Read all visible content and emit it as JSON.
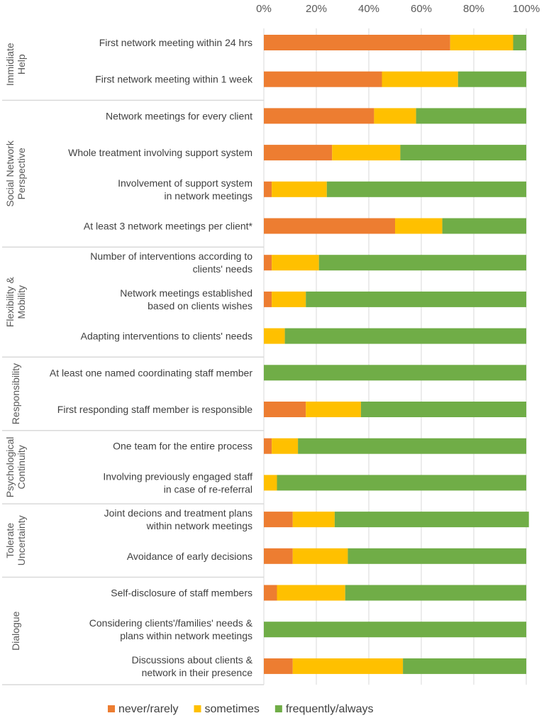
{
  "chart_data": {
    "type": "bar",
    "orientation": "horizontal",
    "stacked": true,
    "title": "",
    "xlabel": "",
    "ylabel": "",
    "xlim": [
      0,
      100
    ],
    "x_ticks": [
      "0%",
      "20%",
      "40%",
      "60%",
      "80%",
      "100%"
    ],
    "x_tick_values": [
      0,
      20,
      40,
      60,
      80,
      100
    ],
    "legend_position": "bottom",
    "series": [
      {
        "name": "never/rarely",
        "color": "#ED7D31",
        "values": [
          71,
          45,
          42,
          26,
          3,
          50,
          3,
          3,
          0,
          0,
          16,
          3,
          0,
          11,
          11,
          5,
          0,
          11
        ]
      },
      {
        "name": "sometimes",
        "color": "#FFC000",
        "values": [
          24,
          29,
          16,
          26,
          21,
          18,
          18,
          13,
          8,
          0,
          21,
          10,
          5,
          16,
          21,
          26,
          0,
          42
        ]
      },
      {
        "name": "frequently/always",
        "color": "#70AD47",
        "values": [
          5,
          26,
          42,
          48,
          76,
          32,
          79,
          84,
          92,
          100,
          63,
          87,
          95,
          74,
          68,
          69,
          100,
          47
        ]
      }
    ],
    "categories": [
      [
        "First network meeting within 24 hrs"
      ],
      [
        "First network meeting within 1 week"
      ],
      [
        "Network meetings for every client"
      ],
      [
        "Whole treatment involving support system"
      ],
      [
        "Involvement of support system",
        "in network meetings"
      ],
      [
        "At least 3 network meetings per client*"
      ],
      [
        "Number of interventions according to",
        "clients' needs"
      ],
      [
        "Network meetings established",
        "based on clients wishes"
      ],
      [
        "Adapting interventions to clients' needs"
      ],
      [
        "At least one named coordinating staff member"
      ],
      [
        "First responding staff member is responsible"
      ],
      [
        "One team for the entire process"
      ],
      [
        "Involving previously engaged staff",
        "in case of re-referral"
      ],
      [
        "Joint decions and treatment plans",
        "within network meetings"
      ],
      [
        "Avoidance of early decisions"
      ],
      [
        "Self-disclosure of staff members"
      ],
      [
        "Considering clients'/families' needs &",
        "plans within network meetings"
      ],
      [
        "Discussions about clients &",
        "network in their presence"
      ]
    ],
    "groups": [
      {
        "label": [
          "Immidiate",
          "Help"
        ],
        "start": 0,
        "end": 1
      },
      {
        "label": [
          "Social Network",
          "Perspective"
        ],
        "start": 2,
        "end": 5
      },
      {
        "label": [
          "Flexibility &",
          "Mobility"
        ],
        "start": 6,
        "end": 8
      },
      {
        "label": [
          "Responsibility"
        ],
        "start": 9,
        "end": 10
      },
      {
        "label": [
          "Psychological",
          "Continuity"
        ],
        "start": 11,
        "end": 12
      },
      {
        "label": [
          "Tolerate",
          "Uncertainty"
        ],
        "start": 13,
        "end": 14
      },
      {
        "label": [
          "Dialogue"
        ],
        "start": 15,
        "end": 17
      }
    ]
  }
}
